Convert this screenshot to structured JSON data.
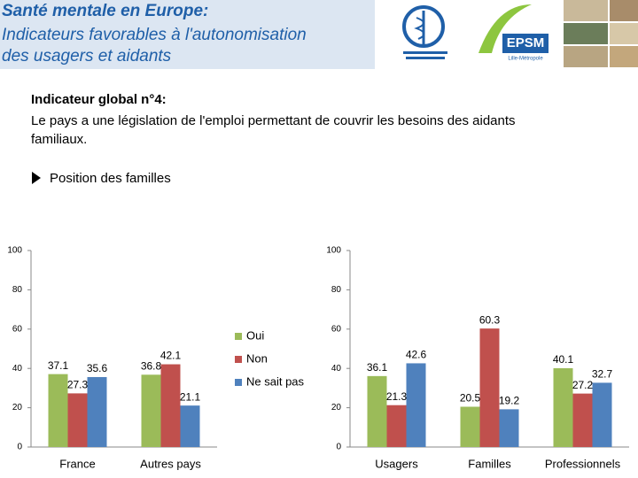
{
  "header": {
    "title": "Santé mentale en Europe:",
    "subtitle_lines": [
      "Indicateurs favorables à l'autonomisation",
      "des usagers et aidants"
    ]
  },
  "logos": {
    "epsm": "EPSM",
    "epsm_sub": "Lille-Métropole"
  },
  "body": {
    "heading": "Indicateur global n°4:",
    "text": "Le pays a une législation de l'emploi permettant de couvrir les besoins des aidants familiaux.",
    "bullet": "Position des familles"
  },
  "chart_data": [
    {
      "type": "bar",
      "categories": [
        "France",
        "Autres pays"
      ],
      "ylim": [
        0,
        100
      ],
      "yticks": [
        0,
        20,
        40,
        60,
        80,
        100
      ],
      "legend": "right",
      "series": [
        {
          "name": "Oui",
          "color": "#9bbb59",
          "values": [
            37.1,
            36.8
          ]
        },
        {
          "name": "Non",
          "color": "#c0504d",
          "values": [
            27.3,
            42.1
          ]
        },
        {
          "name": "Ne sait pas",
          "color": "#4f81bd",
          "values": [
            35.6,
            21.1
          ]
        }
      ]
    },
    {
      "type": "bar",
      "categories": [
        "Usagers",
        "Familles",
        "Professionnels"
      ],
      "ylim": [
        0,
        100
      ],
      "yticks": [
        0,
        20,
        40,
        60,
        80,
        100
      ],
      "series": [
        {
          "color": "#9bbb59",
          "values": [
            36.1,
            20.5,
            40.1
          ]
        },
        {
          "color": "#c0504d",
          "values": [
            21.3,
            60.3,
            27.2
          ]
        },
        {
          "color": "#4f81bd",
          "values": [
            42.6,
            19.2,
            32.7
          ]
        }
      ]
    }
  ]
}
